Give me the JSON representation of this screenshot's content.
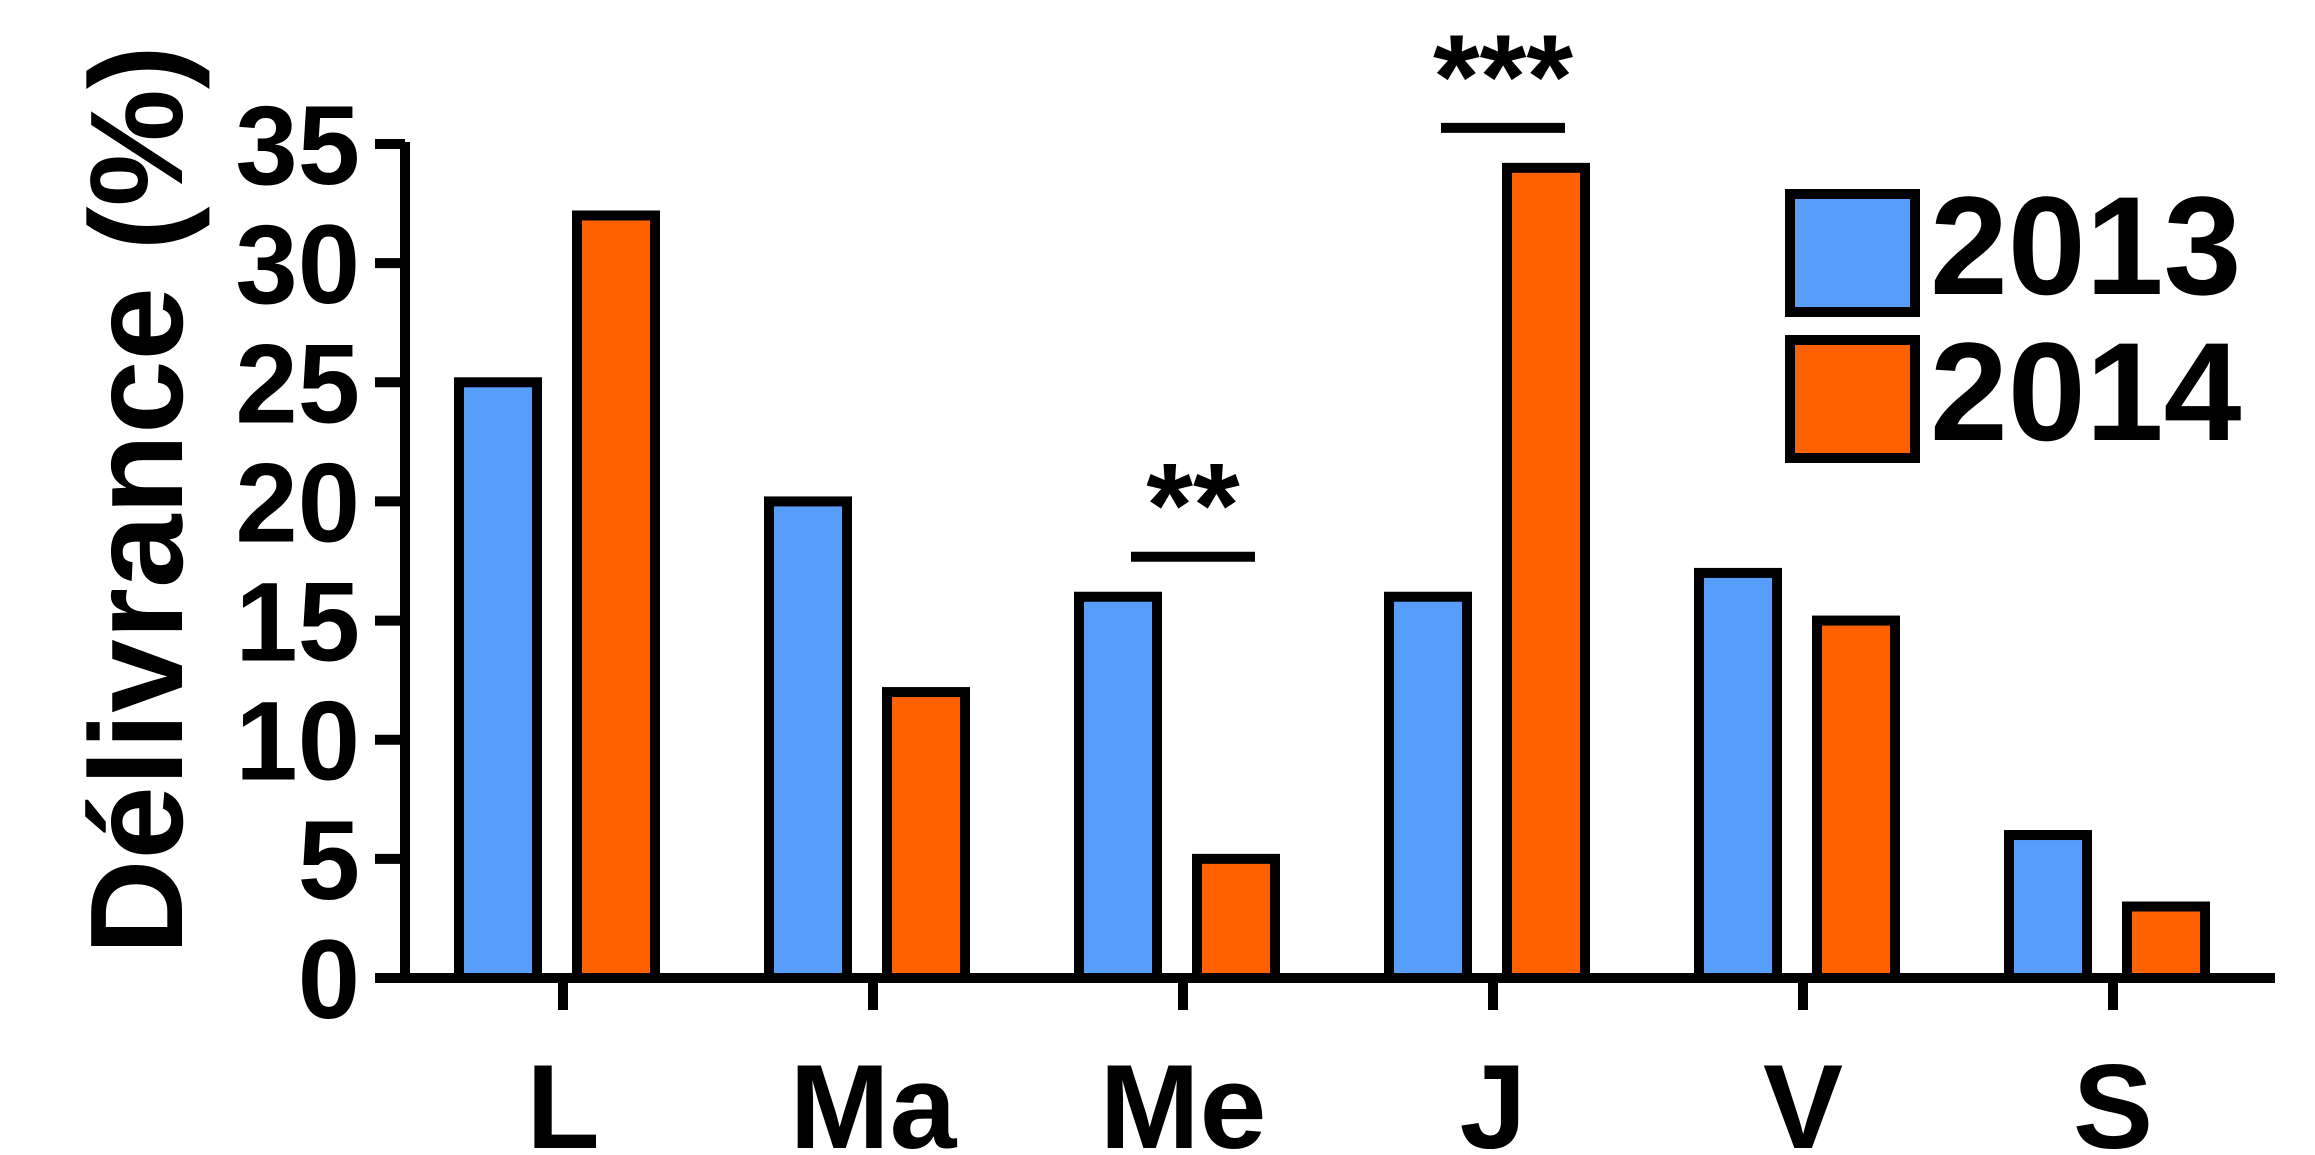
{
  "chart_data": {
    "type": "bar",
    "title": "",
    "xlabel": "",
    "ylabel": "Délivrance (%)",
    "ylim": [
      0,
      35
    ],
    "yticks": [
      0,
      5,
      10,
      15,
      20,
      25,
      30,
      35
    ],
    "categories": [
      "L",
      "Ma",
      "Me",
      "J",
      "V",
      "S"
    ],
    "series": [
      {
        "name": "2013",
        "color": "#579EFB",
        "values": [
          25,
          20,
          16,
          16,
          17,
          6
        ]
      },
      {
        "name": "2014",
        "color": "#FF6100",
        "values": [
          32,
          12,
          5,
          34,
          15,
          3
        ]
      }
    ],
    "significance": [
      {
        "category": "Me",
        "label": "**"
      },
      {
        "category": "J",
        "label": "***"
      }
    ],
    "legend_position": "top-right",
    "grid": false,
    "bar_outline_color": "#000000"
  }
}
